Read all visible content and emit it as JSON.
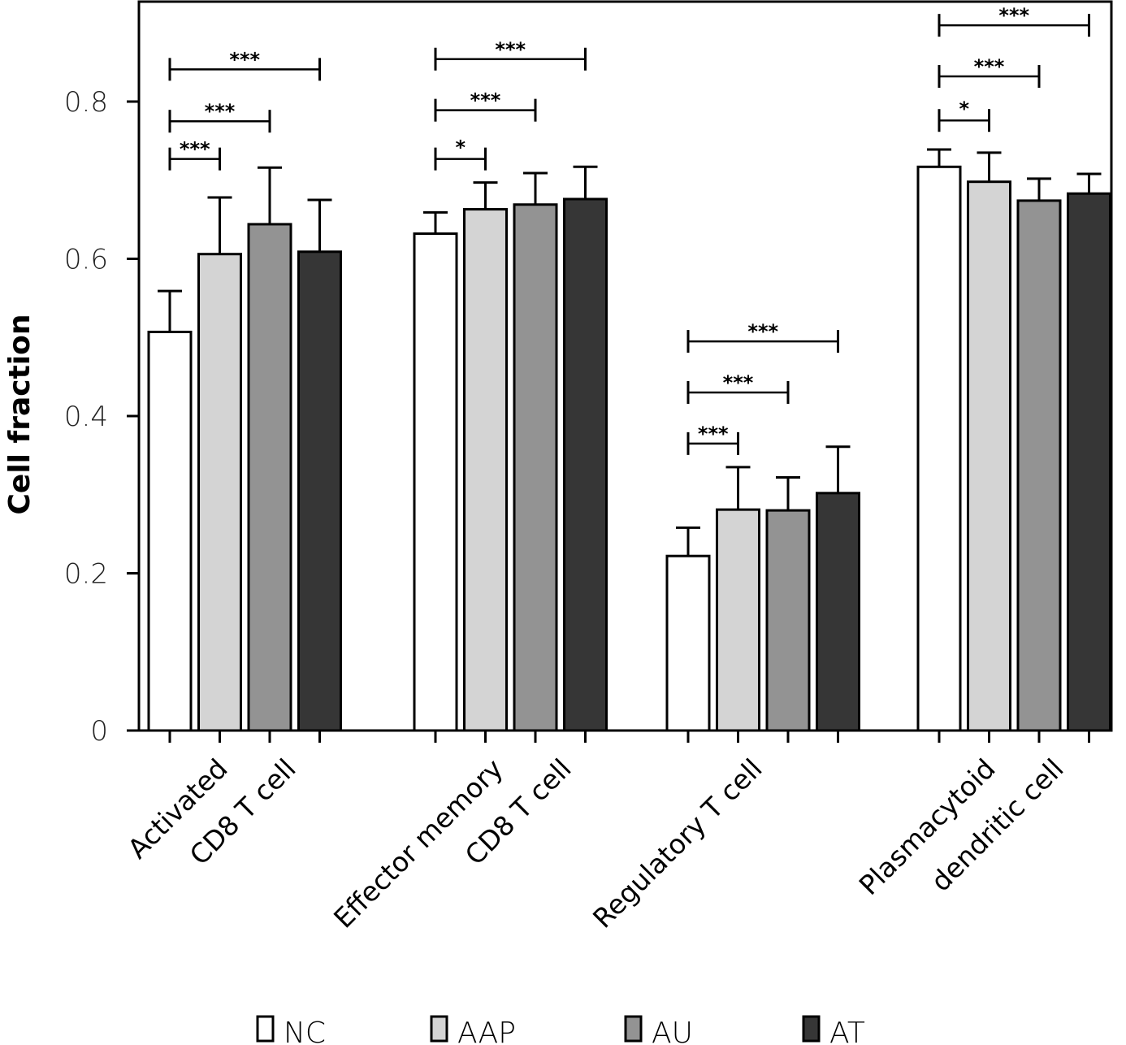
{
  "chart_data": {
    "type": "bar",
    "title": "",
    "xlabel": "",
    "ylabel": "Cell fraction",
    "ylim": [
      0,
      0.92
    ],
    "yticks": [
      0,
      0.2,
      0.4,
      0.6,
      0.8
    ],
    "ytick_labels": [
      "0",
      "0.2",
      "0.4",
      "0.6",
      "0.8"
    ],
    "grid": false,
    "legend_position": "bottom",
    "categories": [
      [
        "Activated",
        "CD8 T cell"
      ],
      [
        "Effector memory",
        "CD8 T cell"
      ],
      [
        "Regulatory T cell"
      ],
      [
        "Plasmacytoid",
        "dendritic cell"
      ]
    ],
    "series": [
      {
        "name": "NC",
        "color": "#ffffff",
        "values": [
          0.507,
          0.632,
          0.222,
          0.717
        ],
        "error": [
          0.052,
          0.027,
          0.036,
          0.022
        ]
      },
      {
        "name": "AAP",
        "color": "#d4d4d4",
        "values": [
          0.606,
          0.663,
          0.281,
          0.698
        ],
        "error": [
          0.072,
          0.034,
          0.054,
          0.037
        ]
      },
      {
        "name": "AU",
        "color": "#939393",
        "values": [
          0.644,
          0.669,
          0.28,
          0.674
        ],
        "error": [
          0.072,
          0.04,
          0.042,
          0.028
        ]
      },
      {
        "name": "AT",
        "color": "#363636",
        "values": [
          0.609,
          0.676,
          0.302,
          0.683
        ],
        "error": [
          0.066,
          0.041,
          0.059,
          0.025
        ]
      }
    ],
    "significance": [
      {
        "category": 0,
        "from": "NC",
        "to": "AAP",
        "label": "***",
        "y": 0.727
      },
      {
        "category": 0,
        "from": "NC",
        "to": "AU",
        "label": "***",
        "y": 0.775
      },
      {
        "category": 0,
        "from": "NC",
        "to": "AT",
        "label": "***",
        "y": 0.841
      },
      {
        "category": 1,
        "from": "NC",
        "to": "AAP",
        "label": "*",
        "y": 0.727
      },
      {
        "category": 1,
        "from": "NC",
        "to": "AU",
        "label": "***",
        "y": 0.789
      },
      {
        "category": 1,
        "from": "NC",
        "to": "AT",
        "label": "***",
        "y": 0.854
      },
      {
        "category": 2,
        "from": "NC",
        "to": "AAP",
        "label": "***",
        "y": 0.365
      },
      {
        "category": 2,
        "from": "NC",
        "to": "AU",
        "label": "***",
        "y": 0.43
      },
      {
        "category": 2,
        "from": "NC",
        "to": "AT",
        "label": "***",
        "y": 0.495
      },
      {
        "category": 3,
        "from": "NC",
        "to": "AAP",
        "label": "*",
        "y": 0.776
      },
      {
        "category": 3,
        "from": "NC",
        "to": "AU",
        "label": "***",
        "y": 0.832
      },
      {
        "category": 3,
        "from": "NC",
        "to": "AT",
        "label": "***",
        "y": 0.897
      }
    ]
  }
}
